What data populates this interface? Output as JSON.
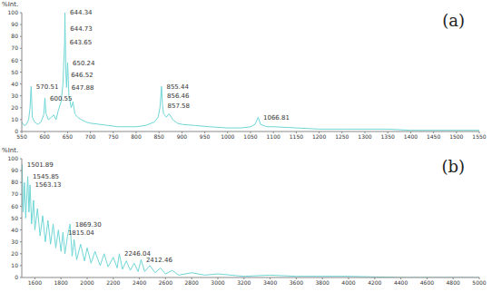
{
  "chart_data": [
    {
      "type": "line",
      "title": "(a)",
      "y_label": "%Int.",
      "color": "#6fd6d6",
      "xlim": [
        550,
        1550
      ],
      "ylim": [
        0,
        100
      ],
      "xticks": [
        550,
        600,
        650,
        700,
        750,
        800,
        850,
        900,
        950,
        1000,
        1050,
        1100,
        1150,
        1200,
        1250,
        1300,
        1350,
        1400,
        1450,
        1500,
        1550
      ],
      "yticks": [
        0,
        10,
        20,
        30,
        40,
        50,
        60,
        70,
        80,
        90,
        100
      ],
      "x": [
        550,
        555,
        560,
        565,
        568,
        570.51,
        573,
        578,
        585,
        592,
        598,
        600.55,
        603,
        608,
        615,
        620,
        625,
        630,
        636,
        640,
        643.65,
        644.34,
        644.73,
        646.52,
        647.88,
        650.24,
        653,
        658,
        662,
        666,
        672,
        680,
        690,
        700,
        720,
        740,
        760,
        780,
        800,
        820,
        840,
        848,
        852,
        855.44,
        856.46,
        857.58,
        860,
        866,
        872,
        880,
        890,
        900,
        930,
        960,
        1000,
        1030,
        1050,
        1060,
        1066.81,
        1072,
        1085,
        1100,
        1150,
        1200,
        1250,
        1300,
        1350,
        1400,
        1450,
        1500,
        1550
      ],
      "values": [
        8,
        5,
        6,
        10,
        20,
        38,
        12,
        8,
        6,
        8,
        14,
        28,
        15,
        10,
        12,
        14,
        10,
        18,
        25,
        40,
        75,
        100,
        87,
        48,
        37,
        58,
        30,
        20,
        25,
        15,
        12,
        10,
        8,
        7,
        6,
        5,
        4,
        4,
        4,
        5,
        8,
        12,
        20,
        38,
        30,
        22,
        15,
        12,
        15,
        10,
        7,
        6,
        5,
        4,
        3,
        3,
        4,
        6,
        12,
        6,
        4,
        4,
        3,
        2,
        2,
        2,
        2,
        1,
        1,
        1,
        1
      ],
      "annotations": [
        {
          "x": 570.51,
          "y": 38,
          "text": "570.51"
        },
        {
          "x": 600.55,
          "y": 28,
          "text": "600.55"
        },
        {
          "x": 644.34,
          "y": 100,
          "text": "644.34"
        },
        {
          "x": 644.73,
          "y": 87,
          "text": "644.73"
        },
        {
          "x": 643.65,
          "y": 75,
          "text": "643.65"
        },
        {
          "x": 650.24,
          "y": 58,
          "text": "650.24"
        },
        {
          "x": 646.52,
          "y": 48,
          "text": "646.52"
        },
        {
          "x": 647.88,
          "y": 37,
          "text": "647.88"
        },
        {
          "x": 855.44,
          "y": 38,
          "text": "855.44"
        },
        {
          "x": 856.46,
          "y": 30,
          "text": "856.46"
        },
        {
          "x": 857.58,
          "y": 22,
          "text": "857.58"
        },
        {
          "x": 1066.81,
          "y": 12,
          "text": "1066.81"
        }
      ]
    },
    {
      "type": "line",
      "title": "(b)",
      "y_label": "%Int.",
      "color": "#6fd6d6",
      "xlim": [
        1500,
        5000
      ],
      "ylim": [
        0,
        100
      ],
      "xticks": [
        1600,
        1800,
        2000,
        2200,
        2400,
        2600,
        2800,
        3000,
        3200,
        3400,
        3600,
        3800,
        4000,
        4200,
        4400,
        4600,
        4800,
        5000
      ],
      "yticks": [
        0,
        10,
        20,
        30,
        40,
        50,
        60,
        70,
        80,
        90,
        100
      ],
      "x": [
        1500,
        1501.89,
        1510,
        1520,
        1530,
        1545.85,
        1555,
        1563.13,
        1575,
        1590,
        1600,
        1620,
        1640,
        1660,
        1680,
        1700,
        1720,
        1740,
        1760,
        1780,
        1800,
        1815.04,
        1830,
        1850,
        1869.3,
        1885,
        1900,
        1920,
        1950,
        1980,
        2000,
        2030,
        2060,
        2100,
        2130,
        2160,
        2200,
        2230,
        2246.04,
        2270,
        2300,
        2330,
        2360,
        2390,
        2412.46,
        2440,
        2480,
        2520,
        2560,
        2600,
        2650,
        2700,
        2800,
        2900,
        3000,
        3200,
        3400,
        3600,
        3800,
        4000,
        4400,
        4800,
        5000
      ],
      "values": [
        60,
        95,
        55,
        80,
        50,
        85,
        55,
        78,
        45,
        65,
        40,
        58,
        35,
        52,
        30,
        48,
        28,
        45,
        25,
        40,
        22,
        38,
        20,
        35,
        45,
        18,
        32,
        15,
        28,
        14,
        25,
        12,
        22,
        10,
        20,
        9,
        17,
        8,
        20,
        7,
        14,
        6,
        12,
        5,
        15,
        5,
        10,
        4,
        8,
        3,
        6,
        2,
        4,
        2,
        3,
        1,
        2,
        1,
        1,
        1,
        0,
        0,
        0
      ],
      "annotations": [
        {
          "x": 1501.89,
          "y": 95,
          "text": "1501.89"
        },
        {
          "x": 1545.85,
          "y": 85,
          "text": "1545.85"
        },
        {
          "x": 1563.13,
          "y": 78,
          "text": "1563.13"
        },
        {
          "x": 1869.3,
          "y": 45,
          "text": "1869.30"
        },
        {
          "x": 1815.04,
          "y": 38,
          "text": "1815.04"
        },
        {
          "x": 2246.04,
          "y": 20,
          "text": "2246.04"
        },
        {
          "x": 2412.46,
          "y": 15,
          "text": "2412.46"
        }
      ]
    }
  ]
}
